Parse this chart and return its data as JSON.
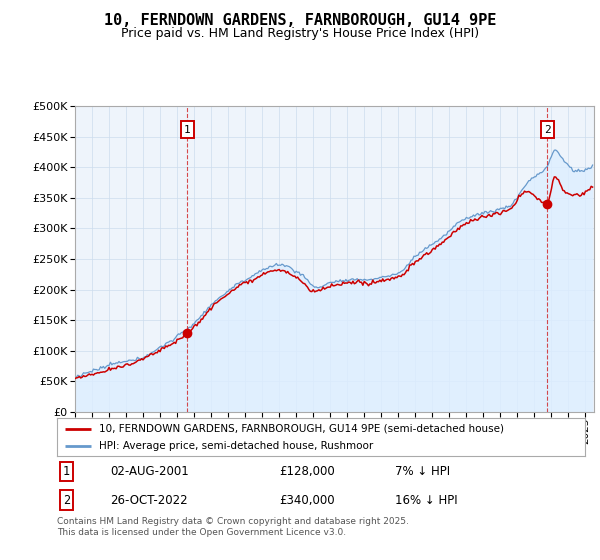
{
  "title": "10, FERNDOWN GARDENS, FARNBOROUGH, GU14 9PE",
  "subtitle": "Price paid vs. HM Land Registry's House Price Index (HPI)",
  "sale1_date": "02-AUG-2001",
  "sale1_price": 128000,
  "sale1_label": "7% ↓ HPI",
  "sale2_date": "26-OCT-2022",
  "sale2_price": 340000,
  "sale2_label": "16% ↓ HPI",
  "legend_line1": "10, FERNDOWN GARDENS, FARNBOROUGH, GU14 9PE (semi-detached house)",
  "legend_line2": "HPI: Average price, semi-detached house, Rushmoor",
  "footnote": "Contains HM Land Registry data © Crown copyright and database right 2025.\nThis data is licensed under the Open Government Licence v3.0.",
  "hpi_fill_color": "#ddeeff",
  "hpi_line_color": "#6699cc",
  "price_color": "#cc0000",
  "sale_vline_color": "#cc0000",
  "ylim": [
    0,
    500000
  ],
  "yticks": [
    0,
    50000,
    100000,
    150000,
    200000,
    250000,
    300000,
    350000,
    400000,
    450000,
    500000
  ],
  "xlim_start": 1995,
  "xlim_end": 2025.5,
  "background_color": "#ffffff",
  "grid_color": "#ccddee",
  "title_fontsize": 11,
  "subtitle_fontsize": 9
}
